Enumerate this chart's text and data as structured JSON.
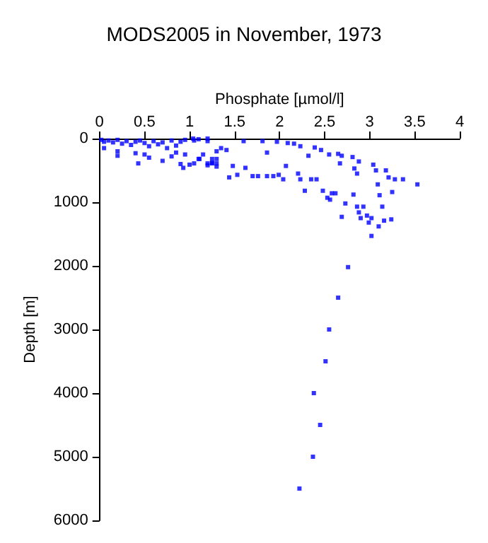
{
  "chart_data": {
    "type": "scatter",
    "title": "MODS2005 in November, 1973",
    "xlabel": "Phosphate [µmol/l]",
    "ylabel": "Depth [m]",
    "x": [
      0.02,
      0.05,
      0.1,
      0.15,
      0.2,
      0.25,
      0.3,
      0.35,
      0.4,
      0.45,
      0.5,
      0.55,
      0.6,
      0.65,
      0.7,
      0.75,
      0.8,
      0.85,
      0.9,
      0.95,
      0.05,
      0.2,
      0.2,
      0.4,
      0.5,
      0.43,
      0.55,
      0.7,
      0.8,
      0.9,
      0.93,
      1.0,
      1.05,
      1.1,
      1.2,
      1.15,
      1.1,
      1.25,
      1.2,
      1.3,
      1.3,
      1.35,
      1.25,
      1.41,
      1.44,
      1.48,
      1.53,
      1.6,
      1.62,
      1.81,
      1.86,
      1.97,
      2.09,
      2.16,
      2.23,
      2.32,
      2.39,
      2.46,
      2.55,
      2.65,
      2.67,
      2.69,
      1.7,
      1.76,
      1.86,
      1.93,
      1.99,
      2.07,
      2.04,
      2.205,
      2.23,
      2.28,
      2.35,
      2.41,
      2.48,
      2.53,
      2.58,
      2.56,
      2.62,
      2.69,
      2.73,
      2.81,
      2.83,
      2.86,
      2.88,
      2.82,
      2.86,
      2.88,
      2.93,
      2.9,
      2.97,
      3.02,
      3.04,
      3.07,
      3.09,
      3.11,
      3.14,
      3.16,
      3.18,
      3.21,
      3.25,
      3.24,
      3.28,
      3.37,
      3.53,
      2.99,
      3.1,
      1.05,
      1.11,
      1.2,
      1.25,
      1.3,
      0.95,
      1.04,
      1.2,
      1.3,
      0.85,
      3.02,
      2.76,
      2.65,
      2.55,
      2.51,
      2.38,
      2.45,
      2.37,
      2.22
    ],
    "values": [
      20,
      50,
      30,
      60,
      20,
      80,
      40,
      100,
      50,
      30,
      70,
      120,
      40,
      90,
      60,
      150,
      30,
      110,
      50,
      20,
      150,
      200,
      270,
      230,
      250,
      390,
      300,
      350,
      280,
      400,
      460,
      410,
      30,
      10,
      40,
      250,
      320,
      380,
      420,
      440,
      200,
      150,
      320,
      180,
      610,
      430,
      570,
      40,
      460,
      40,
      220,
      50,
      70,
      80,
      120,
      270,
      140,
      180,
      250,
      240,
      390,
      270,
      590,
      590,
      590,
      590,
      570,
      430,
      640,
      550,
      640,
      820,
      640,
      640,
      820,
      930,
      860,
      960,
      860,
      1230,
      1020,
      290,
      470,
      550,
      360,
      880,
      1070,
      1160,
      1070,
      1250,
      1210,
      1250,
      410,
      500,
      720,
      890,
      1070,
      1290,
      500,
      610,
      840,
      1270,
      640,
      640,
      720,
      1320,
      1380,
      390,
      320,
      390,
      390,
      390,
      250,
      0,
      0,
      320,
      220,
      1530,
      2020,
      2500,
      3000,
      3500,
      4000,
      4500,
      5000,
      5500
    ],
    "color": "#0000ff",
    "marker": "square",
    "xlim": [
      0,
      4
    ],
    "xticks": [
      0,
      0.5,
      1,
      1.5,
      2,
      2.5,
      3,
      3.5,
      4
    ],
    "ylim": [
      6000,
      0
    ],
    "yticks": [
      0,
      1000,
      2000,
      3000,
      4000,
      5000,
      6000
    ],
    "grid": false
  }
}
